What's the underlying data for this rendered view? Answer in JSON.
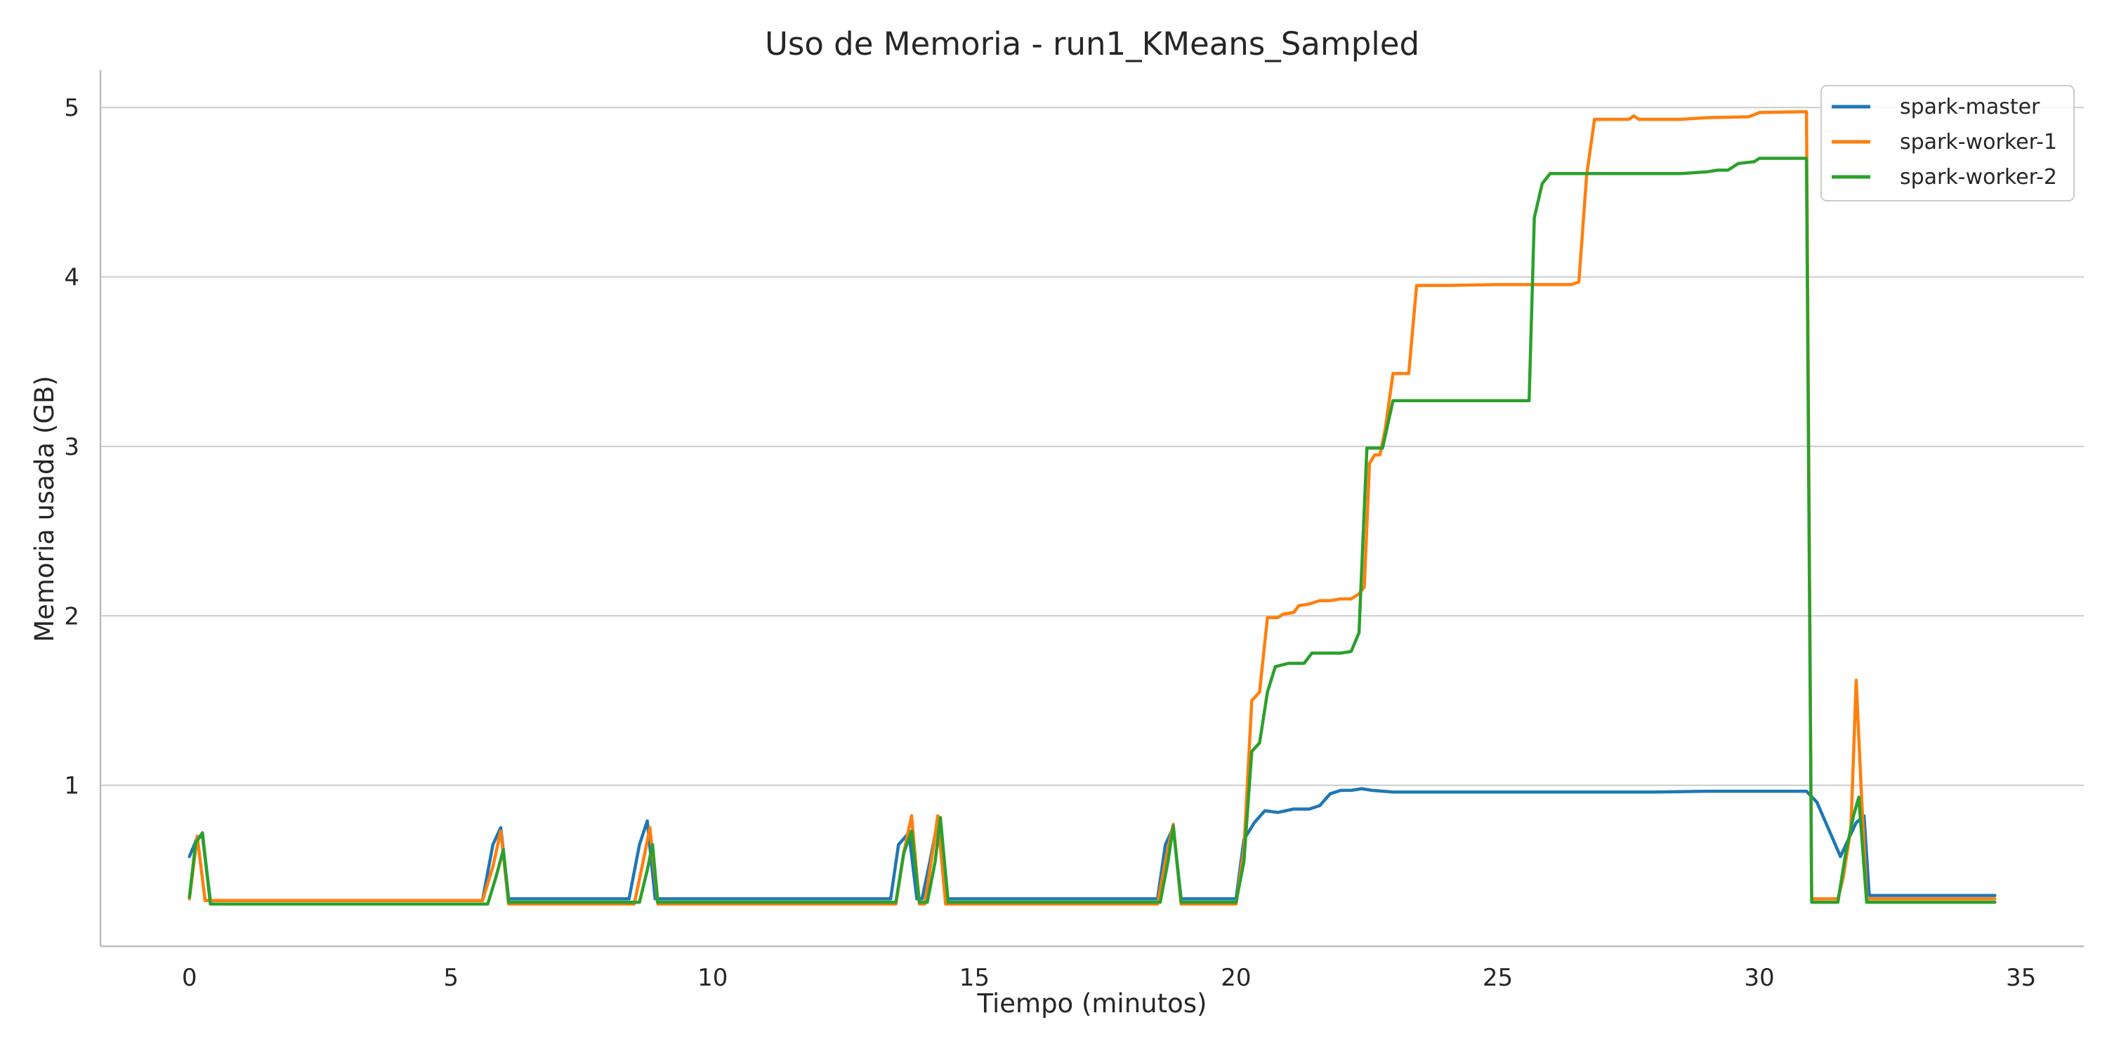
{
  "chart_data": {
    "type": "line",
    "title": "Uso de Memoria - run1_KMeans_Sampled",
    "xlabel": "Tiempo (minutos)",
    "ylabel": "Memoria usada (GB)",
    "xlim": [
      -1.7,
      36.2
    ],
    "ylim": [
      0.05,
      5.22
    ],
    "xticks": [
      0,
      5,
      10,
      15,
      20,
      25,
      30,
      35
    ],
    "yticks": [
      1,
      2,
      3,
      4,
      5
    ],
    "grid": "horizontal",
    "legend_position": "top-right",
    "colors": {
      "spark-master": "#1f77b4",
      "spark-worker-1": "#ff7f0e",
      "spark-worker-2": "#2ca02c",
      "grid": "#cccccc",
      "axis": "#bdbdbd"
    },
    "series": [
      {
        "name": "spark-master",
        "points": [
          [
            0,
            0.58
          ],
          [
            0.15,
            0.69
          ],
          [
            0.25,
            0.7
          ],
          [
            0.4,
            0.32
          ],
          [
            5.6,
            0.32
          ],
          [
            5.8,
            0.65
          ],
          [
            5.95,
            0.75
          ],
          [
            6.1,
            0.33
          ],
          [
            8.4,
            0.33
          ],
          [
            8.6,
            0.65
          ],
          [
            8.75,
            0.79
          ],
          [
            8.9,
            0.33
          ],
          [
            13.4,
            0.33
          ],
          [
            13.55,
            0.65
          ],
          [
            13.75,
            0.72
          ],
          [
            13.9,
            0.33
          ],
          [
            14.0,
            0.33
          ],
          [
            14.15,
            0.55
          ],
          [
            14.3,
            0.79
          ],
          [
            14.45,
            0.33
          ],
          [
            18.5,
            0.33
          ],
          [
            18.65,
            0.65
          ],
          [
            18.8,
            0.75
          ],
          [
            18.95,
            0.33
          ],
          [
            20.0,
            0.33
          ],
          [
            20.15,
            0.68
          ],
          [
            20.35,
            0.78
          ],
          [
            20.55,
            0.85
          ],
          [
            20.8,
            0.84
          ],
          [
            21.1,
            0.86
          ],
          [
            21.4,
            0.86
          ],
          [
            21.6,
            0.88
          ],
          [
            21.8,
            0.95
          ],
          [
            22.0,
            0.97
          ],
          [
            22.2,
            0.97
          ],
          [
            22.4,
            0.98
          ],
          [
            22.6,
            0.97
          ],
          [
            23.0,
            0.96
          ],
          [
            25.0,
            0.96
          ],
          [
            28.0,
            0.96
          ],
          [
            29.0,
            0.965
          ],
          [
            30.9,
            0.965
          ],
          [
            31.1,
            0.9
          ],
          [
            31.55,
            0.58
          ],
          [
            31.7,
            0.68
          ],
          [
            31.85,
            0.78
          ],
          [
            32.0,
            0.82
          ],
          [
            32.1,
            0.35
          ],
          [
            34.5,
            0.35
          ]
        ]
      },
      {
        "name": "spark-worker-1",
        "points": [
          [
            0,
            0.33
          ],
          [
            0.15,
            0.7
          ],
          [
            0.3,
            0.32
          ],
          [
            5.6,
            0.32
          ],
          [
            5.8,
            0.52
          ],
          [
            5.95,
            0.73
          ],
          [
            6.1,
            0.3
          ],
          [
            8.5,
            0.3
          ],
          [
            8.65,
            0.52
          ],
          [
            8.8,
            0.75
          ],
          [
            8.95,
            0.3
          ],
          [
            13.5,
            0.3
          ],
          [
            13.65,
            0.6
          ],
          [
            13.8,
            0.82
          ],
          [
            13.95,
            0.3
          ],
          [
            14.05,
            0.3
          ],
          [
            14.2,
            0.6
          ],
          [
            14.3,
            0.82
          ],
          [
            14.45,
            0.3
          ],
          [
            18.5,
            0.3
          ],
          [
            18.65,
            0.55
          ],
          [
            18.8,
            0.77
          ],
          [
            18.95,
            0.3
          ],
          [
            20.0,
            0.3
          ],
          [
            20.15,
            0.62
          ],
          [
            20.3,
            1.5
          ],
          [
            20.45,
            1.55
          ],
          [
            20.6,
            1.99
          ],
          [
            20.8,
            1.99
          ],
          [
            20.9,
            2.01
          ],
          [
            21.1,
            2.02
          ],
          [
            21.2,
            2.06
          ],
          [
            21.4,
            2.07
          ],
          [
            21.6,
            2.09
          ],
          [
            21.8,
            2.09
          ],
          [
            22.0,
            2.1
          ],
          [
            22.2,
            2.1
          ],
          [
            22.35,
            2.13
          ],
          [
            22.45,
            2.17
          ],
          [
            22.55,
            2.9
          ],
          [
            22.65,
            2.95
          ],
          [
            22.75,
            2.95
          ],
          [
            22.85,
            3.1
          ],
          [
            23.0,
            3.43
          ],
          [
            23.3,
            3.43
          ],
          [
            23.45,
            3.95
          ],
          [
            24.0,
            3.95
          ],
          [
            25.0,
            3.955
          ],
          [
            26.4,
            3.955
          ],
          [
            26.55,
            3.97
          ],
          [
            26.7,
            4.6
          ],
          [
            26.85,
            4.93
          ],
          [
            27.5,
            4.93
          ],
          [
            27.6,
            4.95
          ],
          [
            27.7,
            4.93
          ],
          [
            28.5,
            4.93
          ],
          [
            29.0,
            4.94
          ],
          [
            29.8,
            4.945
          ],
          [
            30.0,
            4.97
          ],
          [
            30.9,
            4.975
          ],
          [
            31.0,
            0.33
          ],
          [
            31.5,
            0.33
          ],
          [
            31.6,
            0.45
          ],
          [
            31.75,
            0.75
          ],
          [
            31.85,
            1.62
          ],
          [
            31.95,
            0.95
          ],
          [
            32.05,
            0.33
          ],
          [
            34.5,
            0.33
          ]
        ]
      },
      {
        "name": "spark-worker-2",
        "points": [
          [
            0,
            0.34
          ],
          [
            0.12,
            0.66
          ],
          [
            0.25,
            0.72
          ],
          [
            0.4,
            0.3
          ],
          [
            5.7,
            0.3
          ],
          [
            5.85,
            0.45
          ],
          [
            6.0,
            0.62
          ],
          [
            6.1,
            0.31
          ],
          [
            8.6,
            0.31
          ],
          [
            8.75,
            0.5
          ],
          [
            8.85,
            0.65
          ],
          [
            8.95,
            0.31
          ],
          [
            13.5,
            0.31
          ],
          [
            13.65,
            0.6
          ],
          [
            13.8,
            0.73
          ],
          [
            13.95,
            0.31
          ],
          [
            14.1,
            0.31
          ],
          [
            14.25,
            0.55
          ],
          [
            14.35,
            0.81
          ],
          [
            14.5,
            0.31
          ],
          [
            18.55,
            0.31
          ],
          [
            18.7,
            0.55
          ],
          [
            18.8,
            0.76
          ],
          [
            18.95,
            0.31
          ],
          [
            20.0,
            0.31
          ],
          [
            20.15,
            0.55
          ],
          [
            20.3,
            1.2
          ],
          [
            20.45,
            1.25
          ],
          [
            20.6,
            1.55
          ],
          [
            20.75,
            1.7
          ],
          [
            21.0,
            1.72
          ],
          [
            21.3,
            1.72
          ],
          [
            21.45,
            1.78
          ],
          [
            22.0,
            1.78
          ],
          [
            22.2,
            1.79
          ],
          [
            22.35,
            1.9
          ],
          [
            22.5,
            2.99
          ],
          [
            22.8,
            2.99
          ],
          [
            23.0,
            3.27
          ],
          [
            24.0,
            3.27
          ],
          [
            25.6,
            3.27
          ],
          [
            25.7,
            4.35
          ],
          [
            25.85,
            4.55
          ],
          [
            26.0,
            4.61
          ],
          [
            27.0,
            4.61
          ],
          [
            28.5,
            4.61
          ],
          [
            29.0,
            4.62
          ],
          [
            29.2,
            4.63
          ],
          [
            29.4,
            4.63
          ],
          [
            29.6,
            4.67
          ],
          [
            29.9,
            4.68
          ],
          [
            30.0,
            4.7
          ],
          [
            30.9,
            4.7
          ],
          [
            31.0,
            0.31
          ],
          [
            31.5,
            0.31
          ],
          [
            31.65,
            0.6
          ],
          [
            31.8,
            0.82
          ],
          [
            31.9,
            0.93
          ],
          [
            32.05,
            0.31
          ],
          [
            34.5,
            0.31
          ]
        ]
      }
    ]
  }
}
